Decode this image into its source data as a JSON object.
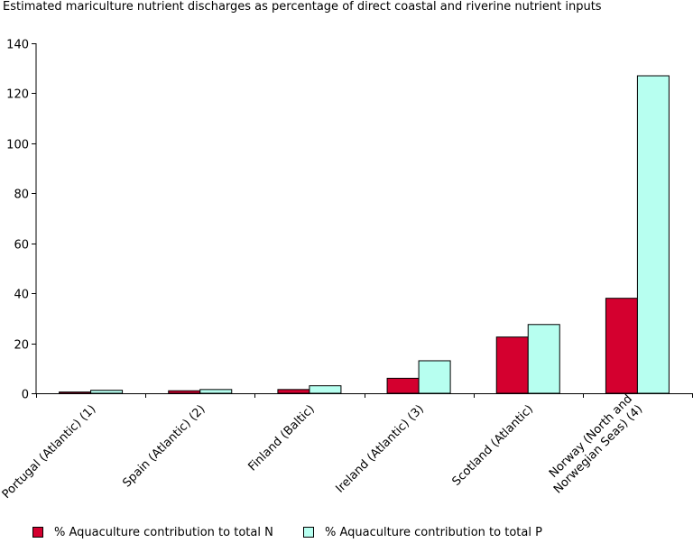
{
  "title": "Estimated mariculture nutrient discharges as percentage of direct coastal and riverine nutrient inputs",
  "legend": [
    {
      "label": "% Aquaculture contribution to total N",
      "color": "#d4002f"
    },
    {
      "label": "% Aquaculture contribution to total P",
      "color": "#b7fff0"
    }
  ],
  "chart_data": {
    "type": "bar",
    "title": "Estimated mariculture nutrient discharges as percentage of direct coastal and riverine nutrient inputs",
    "xlabel": "",
    "ylabel": "",
    "ylim": [
      0,
      140
    ],
    "yticks": [
      0,
      20,
      40,
      60,
      80,
      100,
      120,
      140
    ],
    "grid": false,
    "legend_position": "bottom",
    "categories": [
      [
        "Portugal (Atlantic) (1)"
      ],
      [
        "Spain (Atlantic) (2)"
      ],
      [
        "Finland (Baltic)"
      ],
      [
        "Ireland (Atlantic) (3)"
      ],
      [
        "Scotland (Atlantic)"
      ],
      [
        "Norway (North and",
        "Norwegian Seas) (4)"
      ]
    ],
    "series": [
      {
        "name": "% Aquaculture contribution to total N",
        "color": "#d4002f",
        "values": [
          0.5,
          1.0,
          1.5,
          6.0,
          22.5,
          38.0
        ]
      },
      {
        "name": "% Aquaculture contribution to total P",
        "color": "#b7fff0",
        "values": [
          1.2,
          1.5,
          3.0,
          13.0,
          27.5,
          127.0
        ]
      }
    ]
  }
}
